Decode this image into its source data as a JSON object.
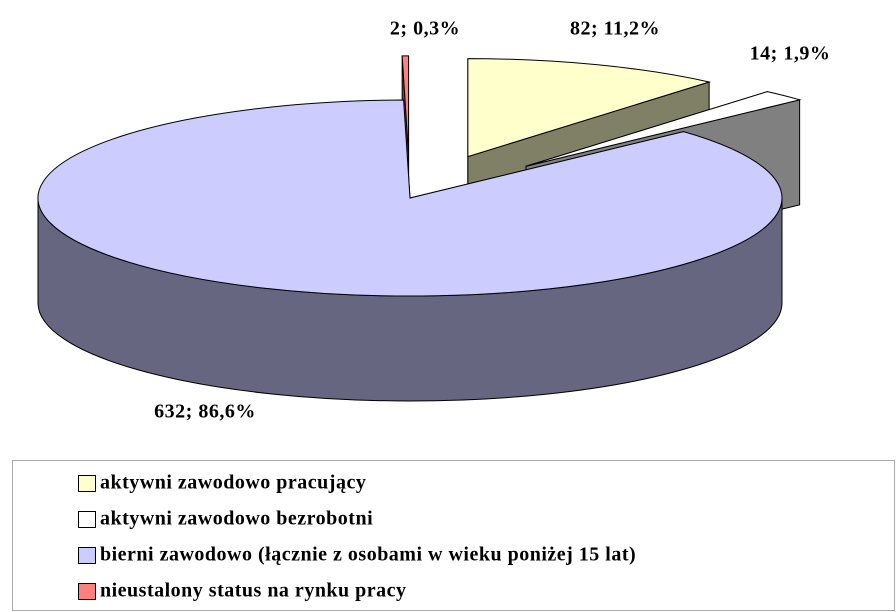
{
  "chart_data": {
    "type": "pie",
    "categories": [
      "aktywni zawodowo pracujący",
      "aktywni zawodowo bezrobotni",
      "bierni zawodowo (łącznie z osobami w wieku poniżej 15 lat)",
      "nieustalony status na rynku pracy"
    ],
    "values": [
      82,
      14,
      632,
      2
    ],
    "value_labels": [
      "82; 11,2%",
      "14; 1,9%",
      "632; 86,6%",
      "2; 0,3%"
    ],
    "colors": [
      "#ffffcc",
      "#ffffff",
      "#ccccff",
      "#ff8080"
    ],
    "legend": "bottom"
  }
}
